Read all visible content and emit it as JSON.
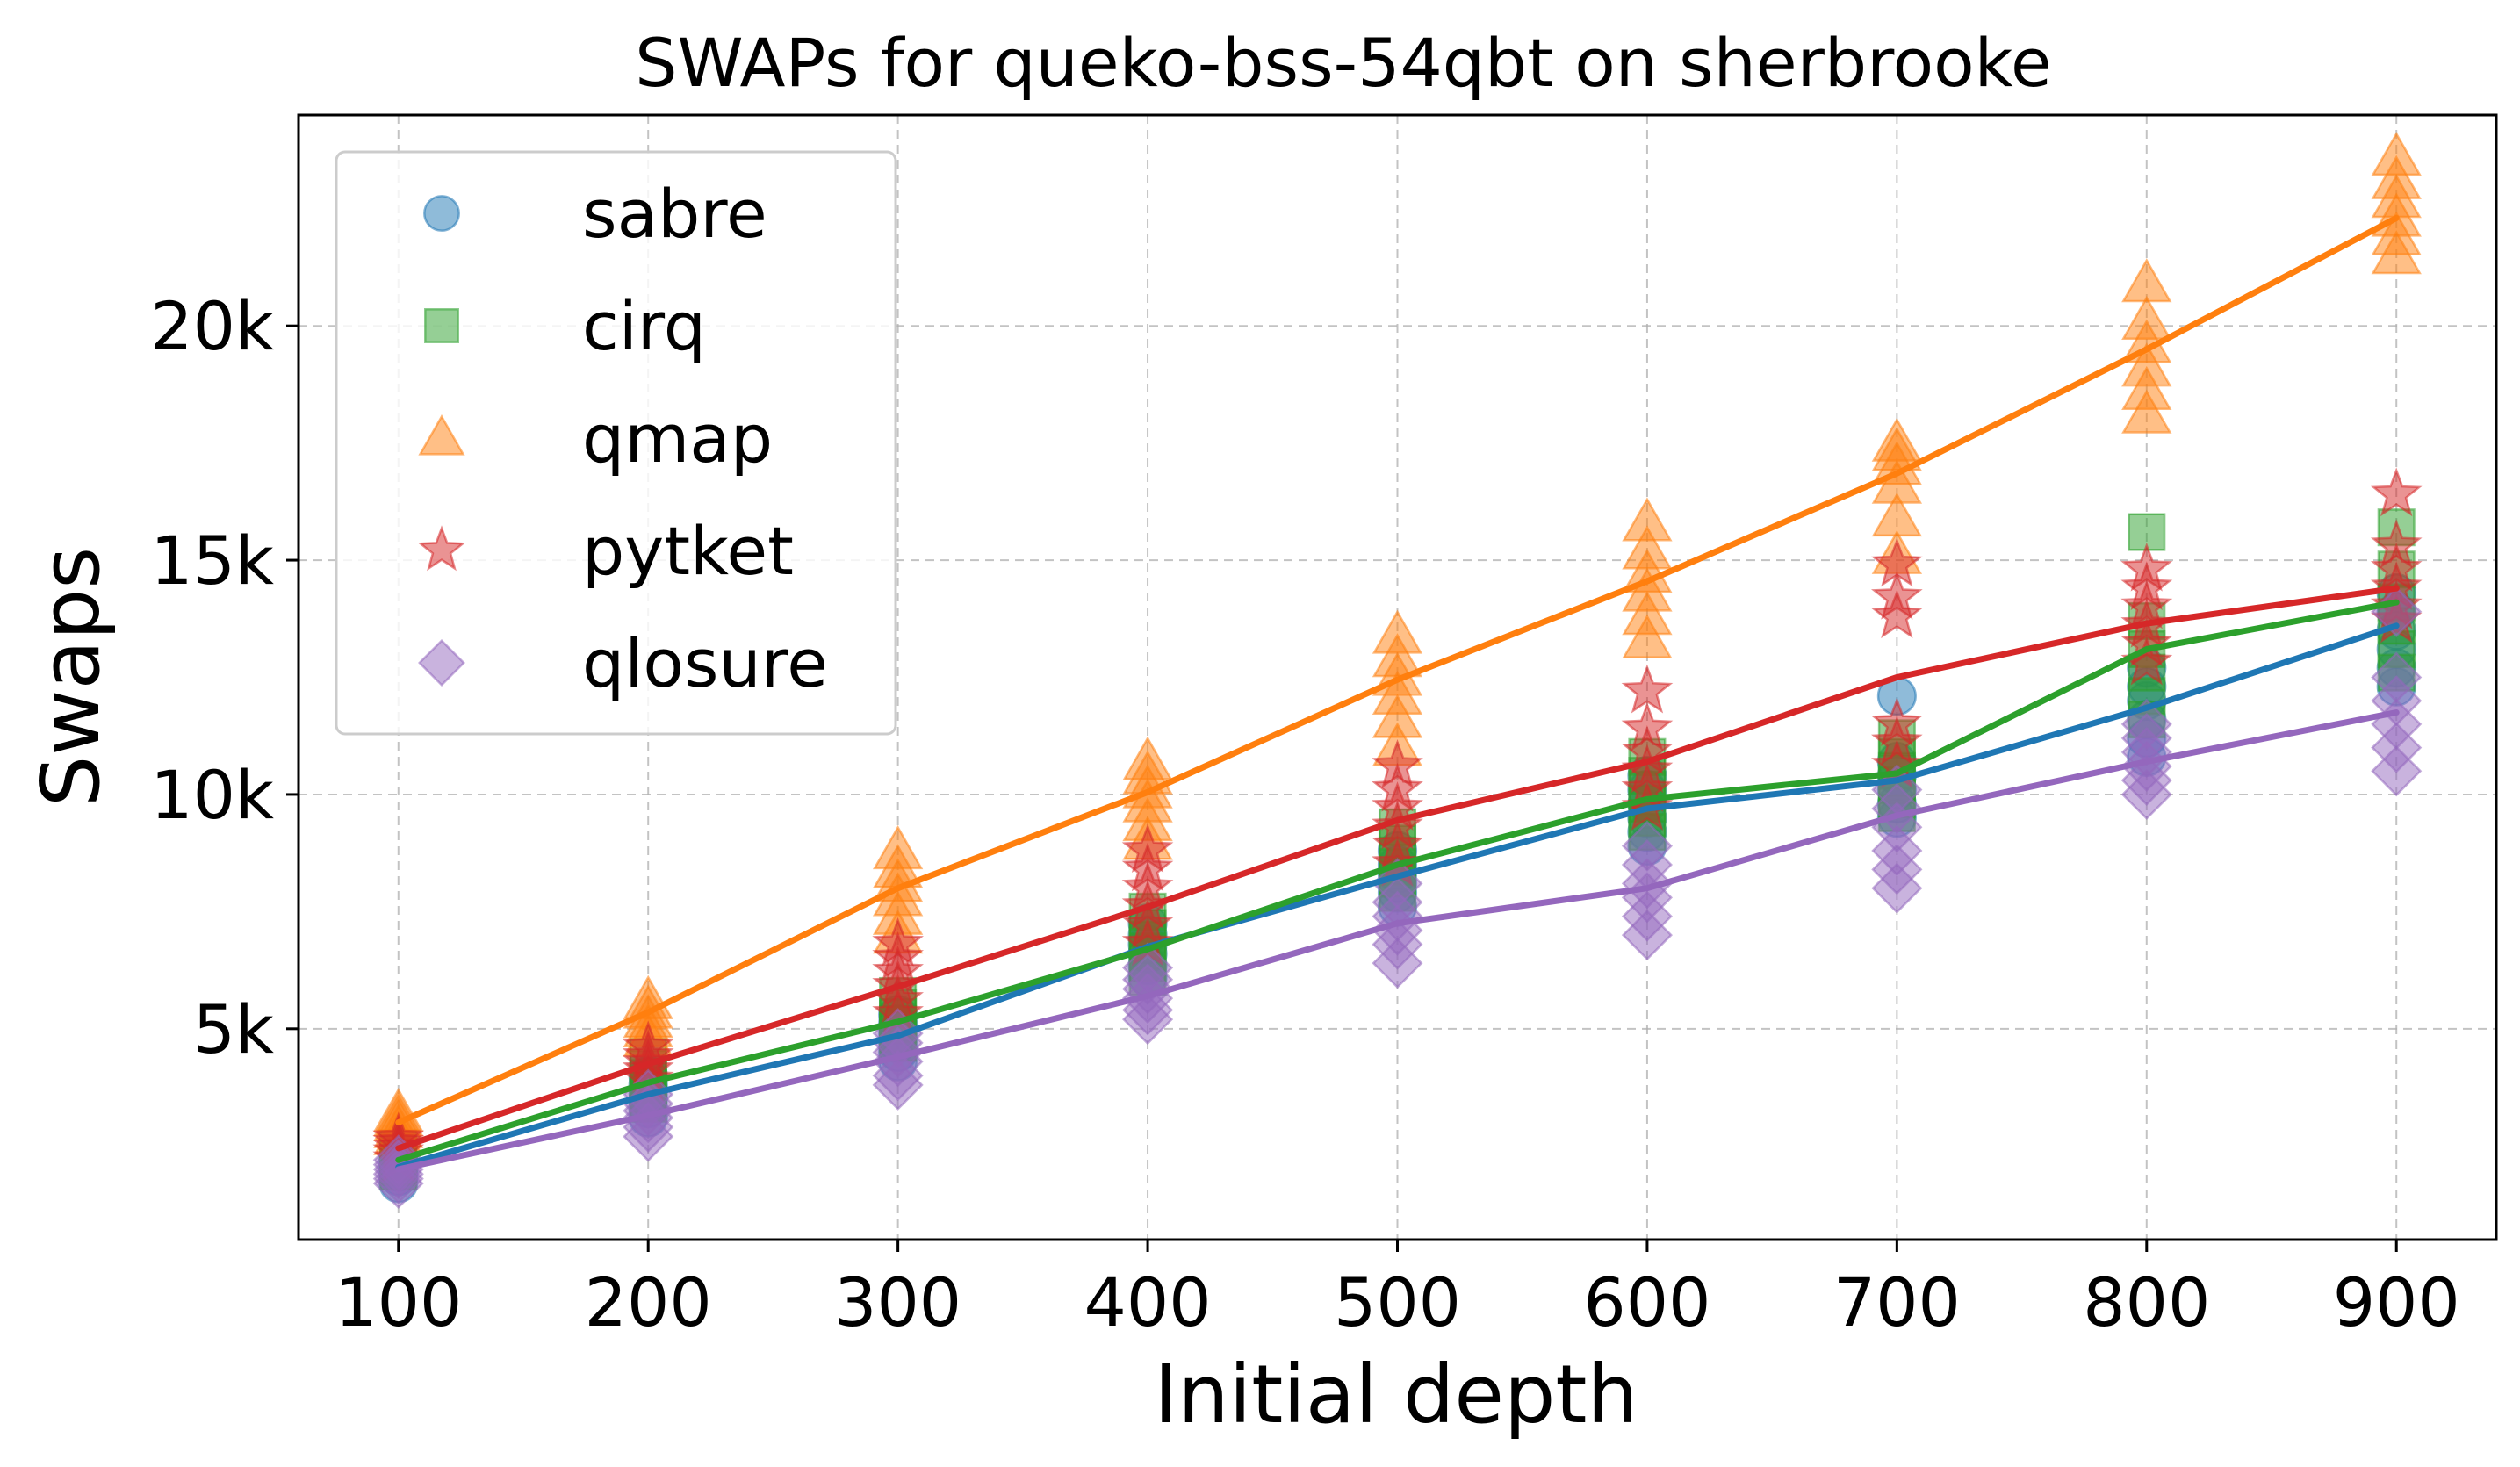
{
  "chart_data": {
    "type": "scatter",
    "title": "SWAPs for queko-bss-54qbt on sherbrooke",
    "xlabel": "Initial depth",
    "ylabel": "Swaps",
    "x": [
      100,
      200,
      300,
      400,
      500,
      600,
      700,
      800,
      900
    ],
    "x_ticks": [
      "100",
      "200",
      "300",
      "400",
      "500",
      "600",
      "700",
      "800",
      "900"
    ],
    "y_ticks": [
      {
        "value": 5000,
        "label": "5k"
      },
      {
        "value": 10000,
        "label": "10k"
      },
      {
        "value": 15000,
        "label": "15k"
      },
      {
        "value": 20000,
        "label": "20k"
      }
    ],
    "xlim": [
      60,
      940
    ],
    "ylim": [
      500,
      24500
    ],
    "grid": true,
    "legend_position": "upper-left",
    "series": [
      {
        "name": "sabre",
        "color": "#1f77b4",
        "marker": "circle",
        "mean": [
          2050,
          3600,
          4850,
          6750,
          8250,
          9700,
          10300,
          11850,
          13600
        ],
        "points": [
          [
            1700,
            1850,
            1950,
            2050,
            2150,
            2250
          ],
          [
            3100,
            3300,
            3500,
            3650,
            3800,
            4000
          ],
          [
            4300,
            4500,
            4700,
            4900,
            5100,
            5300
          ],
          [
            6100,
            6350,
            6600,
            6800,
            7000,
            7250
          ],
          [
            7600,
            7900,
            8100,
            8300,
            8500,
            8800
          ],
          [
            8900,
            9200,
            9500,
            9800,
            10100,
            10400
          ],
          [
            9500,
            9800,
            10100,
            10400,
            10700,
            12100
          ],
          [
            10800,
            11200,
            11600,
            12000,
            12300,
            12700
          ],
          [
            12300,
            12700,
            13100,
            13500,
            13900,
            14300
          ]
        ]
      },
      {
        "name": "cirq",
        "color": "#2ca02c",
        "marker": "square",
        "mean": [
          2200,
          3850,
          5150,
          6700,
          8500,
          9900,
          10450,
          13100,
          14100
        ],
        "points": [
          [
            1950,
            2050,
            2150,
            2250,
            2350,
            2450
          ],
          [
            3400,
            3600,
            3800,
            3950,
            4150,
            4400
          ],
          [
            4700,
            4900,
            5100,
            5250,
            5450,
            5700
          ],
          [
            6100,
            6400,
            6650,
            6900,
            7150,
            7500
          ],
          [
            7900,
            8200,
            8450,
            8700,
            8950,
            9300
          ],
          [
            9200,
            9500,
            9800,
            10100,
            10400,
            10800
          ],
          [
            9600,
            9900,
            10200,
            10500,
            10800,
            11200
          ],
          [
            11600,
            12100,
            12600,
            13100,
            13700,
            15600
          ],
          [
            12600,
            13100,
            13600,
            14100,
            14800,
            15700
          ]
        ]
      },
      {
        "name": "qmap",
        "color": "#ff7f0e",
        "marker": "triangle",
        "mean": [
          3000,
          5350,
          8000,
          10050,
          12450,
          14550,
          16850,
          19500,
          22300
        ],
        "points": [
          [
            2700,
            2850,
            3000,
            3100,
            3200
          ],
          [
            4800,
            5000,
            5200,
            5400,
            5600
          ],
          [
            7000,
            7400,
            7800,
            8100,
            8400,
            8800
          ],
          [
            9000,
            9400,
            9800,
            10100,
            10400,
            10700
          ],
          [
            11000,
            11600,
            12100,
            12500,
            12900,
            13400
          ],
          [
            13300,
            13800,
            14300,
            14700,
            15200,
            15800
          ],
          [
            15100,
            15900,
            16600,
            17000,
            17300,
            17500
          ],
          [
            18100,
            18600,
            19100,
            19600,
            20100,
            20900
          ],
          [
            21500,
            21900,
            22300,
            22700,
            23100,
            23600
          ]
        ]
      },
      {
        "name": "pytket",
        "color": "#d62728",
        "marker": "star",
        "mean": [
          2450,
          4250,
          5900,
          7600,
          9450,
          10700,
          12500,
          13650,
          14400
        ],
        "points": [
          [
            2200,
            2350,
            2450,
            2550,
            2650
          ],
          [
            3900,
            4100,
            4250,
            4400,
            4600
          ],
          [
            5300,
            5600,
            5900,
            6200,
            6500,
            6800
          ],
          [
            6800,
            7200,
            7600,
            8000,
            8400,
            8800
          ],
          [
            8500,
            8900,
            9300,
            9700,
            10100,
            10600
          ],
          [
            9700,
            10100,
            10500,
            10900,
            11400,
            12200
          ],
          [
            10600,
            11100,
            11500,
            13800,
            14200,
            14900
          ],
          [
            12800,
            13200,
            13600,
            14000,
            14400,
            14800
          ],
          [
            13700,
            14000,
            14400,
            14800,
            15300,
            16400
          ]
        ]
      },
      {
        "name": "qlosure",
        "color": "#9467bd",
        "marker": "diamond",
        "mean": [
          2000,
          3150,
          4400,
          5700,
          7250,
          8000,
          9550,
          10700,
          11750
        ],
        "points": [
          [
            1700,
            1800,
            1900,
            2000,
            2100,
            2200
          ],
          [
            2700,
            2900,
            3100,
            3250,
            3400,
            3600
          ],
          [
            3800,
            4000,
            4300,
            4500,
            4700,
            4900
          ],
          [
            5200,
            5400,
            5650,
            5850,
            6050,
            6300
          ],
          [
            6400,
            6800,
            7100,
            7400,
            7700,
            8100
          ],
          [
            7000,
            7400,
            7800,
            8100,
            8500,
            8900
          ],
          [
            8000,
            8400,
            8800,
            9300,
            9700,
            10100
          ],
          [
            10000,
            10300,
            10600,
            10900,
            11200,
            11500
          ],
          [
            10500,
            11000,
            11500,
            12000,
            12500,
            13900
          ]
        ]
      }
    ]
  }
}
